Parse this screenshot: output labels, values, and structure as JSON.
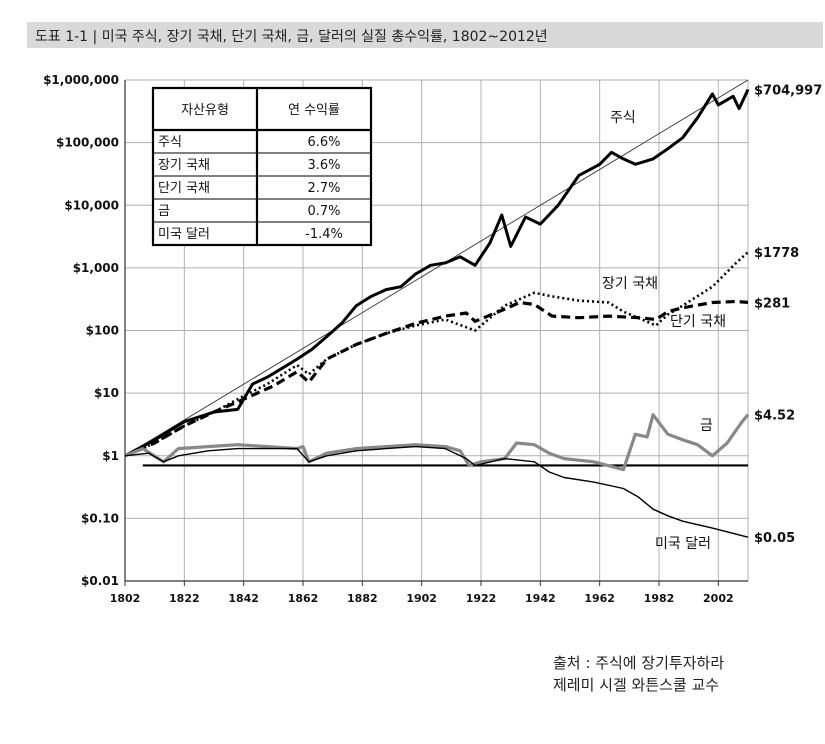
{
  "header": {
    "title": "도표 1-1 | 미국 주식, 장기 국채, 단기 국채, 금, 달러의 실질 총수익률, 1802~2012년"
  },
  "source": {
    "line1": "출처 : 주식에 장기투자하라",
    "line2": "제레미 시겔 와튼스쿨 교수"
  },
  "chart_data": {
    "type": "line",
    "title": "미국 주식, 장기 국채, 단기 국채, 금, 달러의 실질 총수익률, 1802~2012년",
    "yscale": "log",
    "ylim": [
      0.01,
      1000000
    ],
    "xlim": [
      1802,
      2012
    ],
    "y_tick_values": [
      0.01,
      0.1,
      1,
      10,
      100,
      1000,
      10000,
      100000,
      1000000
    ],
    "y_tick_labels": [
      "$0.01",
      "$0.10",
      "$1",
      "$10",
      "$100",
      "$1,000",
      "$10,000",
      "$100,000",
      "$1,000,000"
    ],
    "x_ticks": [
      1802,
      1822,
      1842,
      1862,
      1882,
      1902,
      1922,
      1942,
      1962,
      1982,
      2002
    ],
    "reference_line": {
      "y": 0.7,
      "x": [
        1808,
        2012
      ]
    },
    "trend_line": {
      "from": [
        1802,
        1
      ],
      "to": [
        2012,
        1000000
      ]
    },
    "series": [
      {
        "name": "주식",
        "style": "solid-thick",
        "color": "#000000",
        "end_label": "$704,997",
        "points": [
          [
            1802,
            1
          ],
          [
            1812,
            1.8
          ],
          [
            1822,
            3.5
          ],
          [
            1832,
            5
          ],
          [
            1840,
            5.5
          ],
          [
            1845,
            14
          ],
          [
            1850,
            18
          ],
          [
            1855,
            25
          ],
          [
            1860,
            35
          ],
          [
            1865,
            50
          ],
          [
            1870,
            80
          ],
          [
            1875,
            130
          ],
          [
            1880,
            250
          ],
          [
            1885,
            350
          ],
          [
            1890,
            450
          ],
          [
            1895,
            500
          ],
          [
            1900,
            800
          ],
          [
            1905,
            1100
          ],
          [
            1910,
            1200
          ],
          [
            1915,
            1500
          ],
          [
            1920,
            1100
          ],
          [
            1925,
            2500
          ],
          [
            1929,
            7000
          ],
          [
            1932,
            2200
          ],
          [
            1937,
            6500
          ],
          [
            1942,
            5000
          ],
          [
            1948,
            10000
          ],
          [
            1955,
            30000
          ],
          [
            1962,
            45000
          ],
          [
            1966,
            70000
          ],
          [
            1970,
            55000
          ],
          [
            1974,
            45000
          ],
          [
            1980,
            55000
          ],
          [
            1985,
            80000
          ],
          [
            1990,
            120000
          ],
          [
            1995,
            250000
          ],
          [
            2000,
            600000
          ],
          [
            2002,
            400000
          ],
          [
            2007,
            550000
          ],
          [
            2009,
            350000
          ],
          [
            2012,
            704997
          ]
        ]
      },
      {
        "name": "장기 국채",
        "style": "dotted",
        "color": "#000000",
        "end_label": "$1778",
        "points": [
          [
            1802,
            1
          ],
          [
            1812,
            1.6
          ],
          [
            1822,
            3
          ],
          [
            1832,
            5
          ],
          [
            1842,
            9
          ],
          [
            1850,
            14
          ],
          [
            1860,
            28
          ],
          [
            1864,
            20
          ],
          [
            1870,
            35
          ],
          [
            1880,
            60
          ],
          [
            1890,
            90
          ],
          [
            1900,
            120
          ],
          [
            1910,
            150
          ],
          [
            1920,
            100
          ],
          [
            1930,
            250
          ],
          [
            1940,
            400
          ],
          [
            1946,
            350
          ],
          [
            1955,
            300
          ],
          [
            1965,
            280
          ],
          [
            1970,
            200
          ],
          [
            1981,
            120
          ],
          [
            1985,
            180
          ],
          [
            1990,
            250
          ],
          [
            2000,
            500
          ],
          [
            2008,
            1200
          ],
          [
            2012,
            1778
          ]
        ]
      },
      {
        "name": "단기 국채",
        "style": "dashed",
        "color": "#000000",
        "end_label": "$281",
        "points": [
          [
            1802,
            1
          ],
          [
            1812,
            1.6
          ],
          [
            1822,
            3
          ],
          [
            1832,
            5
          ],
          [
            1842,
            8
          ],
          [
            1852,
            13
          ],
          [
            1860,
            22
          ],
          [
            1864,
            15
          ],
          [
            1870,
            35
          ],
          [
            1880,
            60
          ],
          [
            1890,
            90
          ],
          [
            1900,
            130
          ],
          [
            1910,
            170
          ],
          [
            1917,
            190
          ],
          [
            1920,
            140
          ],
          [
            1930,
            220
          ],
          [
            1935,
            280
          ],
          [
            1940,
            260
          ],
          [
            1946,
            170
          ],
          [
            1955,
            160
          ],
          [
            1965,
            170
          ],
          [
            1975,
            160
          ],
          [
            1981,
            150
          ],
          [
            1985,
            200
          ],
          [
            1990,
            230
          ],
          [
            2000,
            280
          ],
          [
            2008,
            290
          ],
          [
            2012,
            281
          ]
        ]
      },
      {
        "name": "금",
        "style": "solid-gray",
        "color": "#888888",
        "end_label": "$4.52",
        "points": [
          [
            1802,
            1
          ],
          [
            1808,
            1.3
          ],
          [
            1815,
            0.8
          ],
          [
            1820,
            1.3
          ],
          [
            1830,
            1.4
          ],
          [
            1840,
            1.5
          ],
          [
            1850,
            1.4
          ],
          [
            1860,
            1.3
          ],
          [
            1862,
            1.4
          ],
          [
            1864,
            0.8
          ],
          [
            1870,
            1.1
          ],
          [
            1880,
            1.3
          ],
          [
            1890,
            1.4
          ],
          [
            1900,
            1.5
          ],
          [
            1910,
            1.4
          ],
          [
            1915,
            1.2
          ],
          [
            1918,
            0.7
          ],
          [
            1922,
            0.8
          ],
          [
            1930,
            0.9
          ],
          [
            1934,
            1.6
          ],
          [
            1940,
            1.5
          ],
          [
            1945,
            1.1
          ],
          [
            1950,
            0.9
          ],
          [
            1960,
            0.8
          ],
          [
            1970,
            0.6
          ],
          [
            1974,
            2.2
          ],
          [
            1978,
            2
          ],
          [
            1980,
            4.5
          ],
          [
            1985,
            2.2
          ],
          [
            1990,
            1.8
          ],
          [
            1995,
            1.5
          ],
          [
            2000,
            1.0
          ],
          [
            2005,
            1.6
          ],
          [
            2010,
            3.5
          ],
          [
            2012,
            4.52
          ]
        ]
      },
      {
        "name": "미국 달러",
        "style": "solid-thin",
        "color": "#000000",
        "end_label": "$0.05",
        "points": [
          [
            1802,
            1
          ],
          [
            1810,
            1.1
          ],
          [
            1815,
            0.8
          ],
          [
            1820,
            1
          ],
          [
            1830,
            1.2
          ],
          [
            1840,
            1.3
          ],
          [
            1850,
            1.3
          ],
          [
            1860,
            1.3
          ],
          [
            1864,
            0.8
          ],
          [
            1870,
            1
          ],
          [
            1880,
            1.2
          ],
          [
            1890,
            1.3
          ],
          [
            1900,
            1.4
          ],
          [
            1910,
            1.3
          ],
          [
            1917,
            0.9
          ],
          [
            1920,
            0.7
          ],
          [
            1930,
            0.9
          ],
          [
            1940,
            0.8
          ],
          [
            1945,
            0.55
          ],
          [
            1950,
            0.45
          ],
          [
            1960,
            0.38
          ],
          [
            1970,
            0.3
          ],
          [
            1975,
            0.22
          ],
          [
            1980,
            0.14
          ],
          [
            1985,
            0.11
          ],
          [
            1990,
            0.09
          ],
          [
            2000,
            0.07
          ],
          [
            2012,
            0.05
          ]
        ]
      }
    ],
    "series_labels": [
      "주식",
      "장기 국채",
      "단기 국채",
      "금",
      "미국 달러"
    ],
    "table": {
      "headers": [
        "자산유형",
        "연 수익률"
      ],
      "rows": [
        [
          "주식",
          "6.6%"
        ],
        [
          "장기 국채",
          "3.6%"
        ],
        [
          "단기 국채",
          "2.7%"
        ],
        [
          "금",
          "0.7%"
        ],
        [
          "미국 달러",
          "-1.4%"
        ]
      ]
    }
  }
}
